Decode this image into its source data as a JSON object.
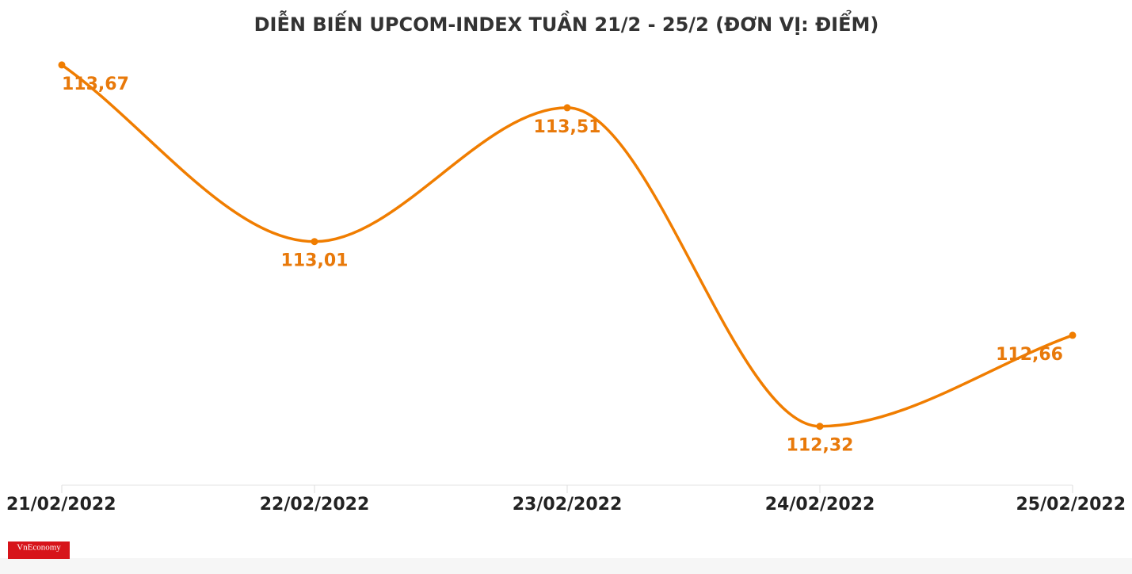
{
  "chart_data": {
    "type": "line",
    "title": "DIỄN BIẾN UPCOM-INDEX TUẦN 21/2 - 25/2 (ĐƠN VỊ: ĐIỂM)",
    "categories": [
      "21/02/2022",
      "22/02/2022",
      "23/02/2022",
      "24/02/2022",
      "25/02/2022"
    ],
    "series": [
      {
        "name": "UPCOM-Index",
        "color": "#f07d00",
        "values": [
          113.67,
          113.01,
          113.51,
          112.32,
          112.66
        ],
        "value_labels": [
          "113,67",
          "113,01",
          "113,51",
          "112,32",
          "112,66"
        ]
      }
    ],
    "ylim": [
      112.1,
      113.8
    ]
  },
  "logo": "VnEconomy"
}
